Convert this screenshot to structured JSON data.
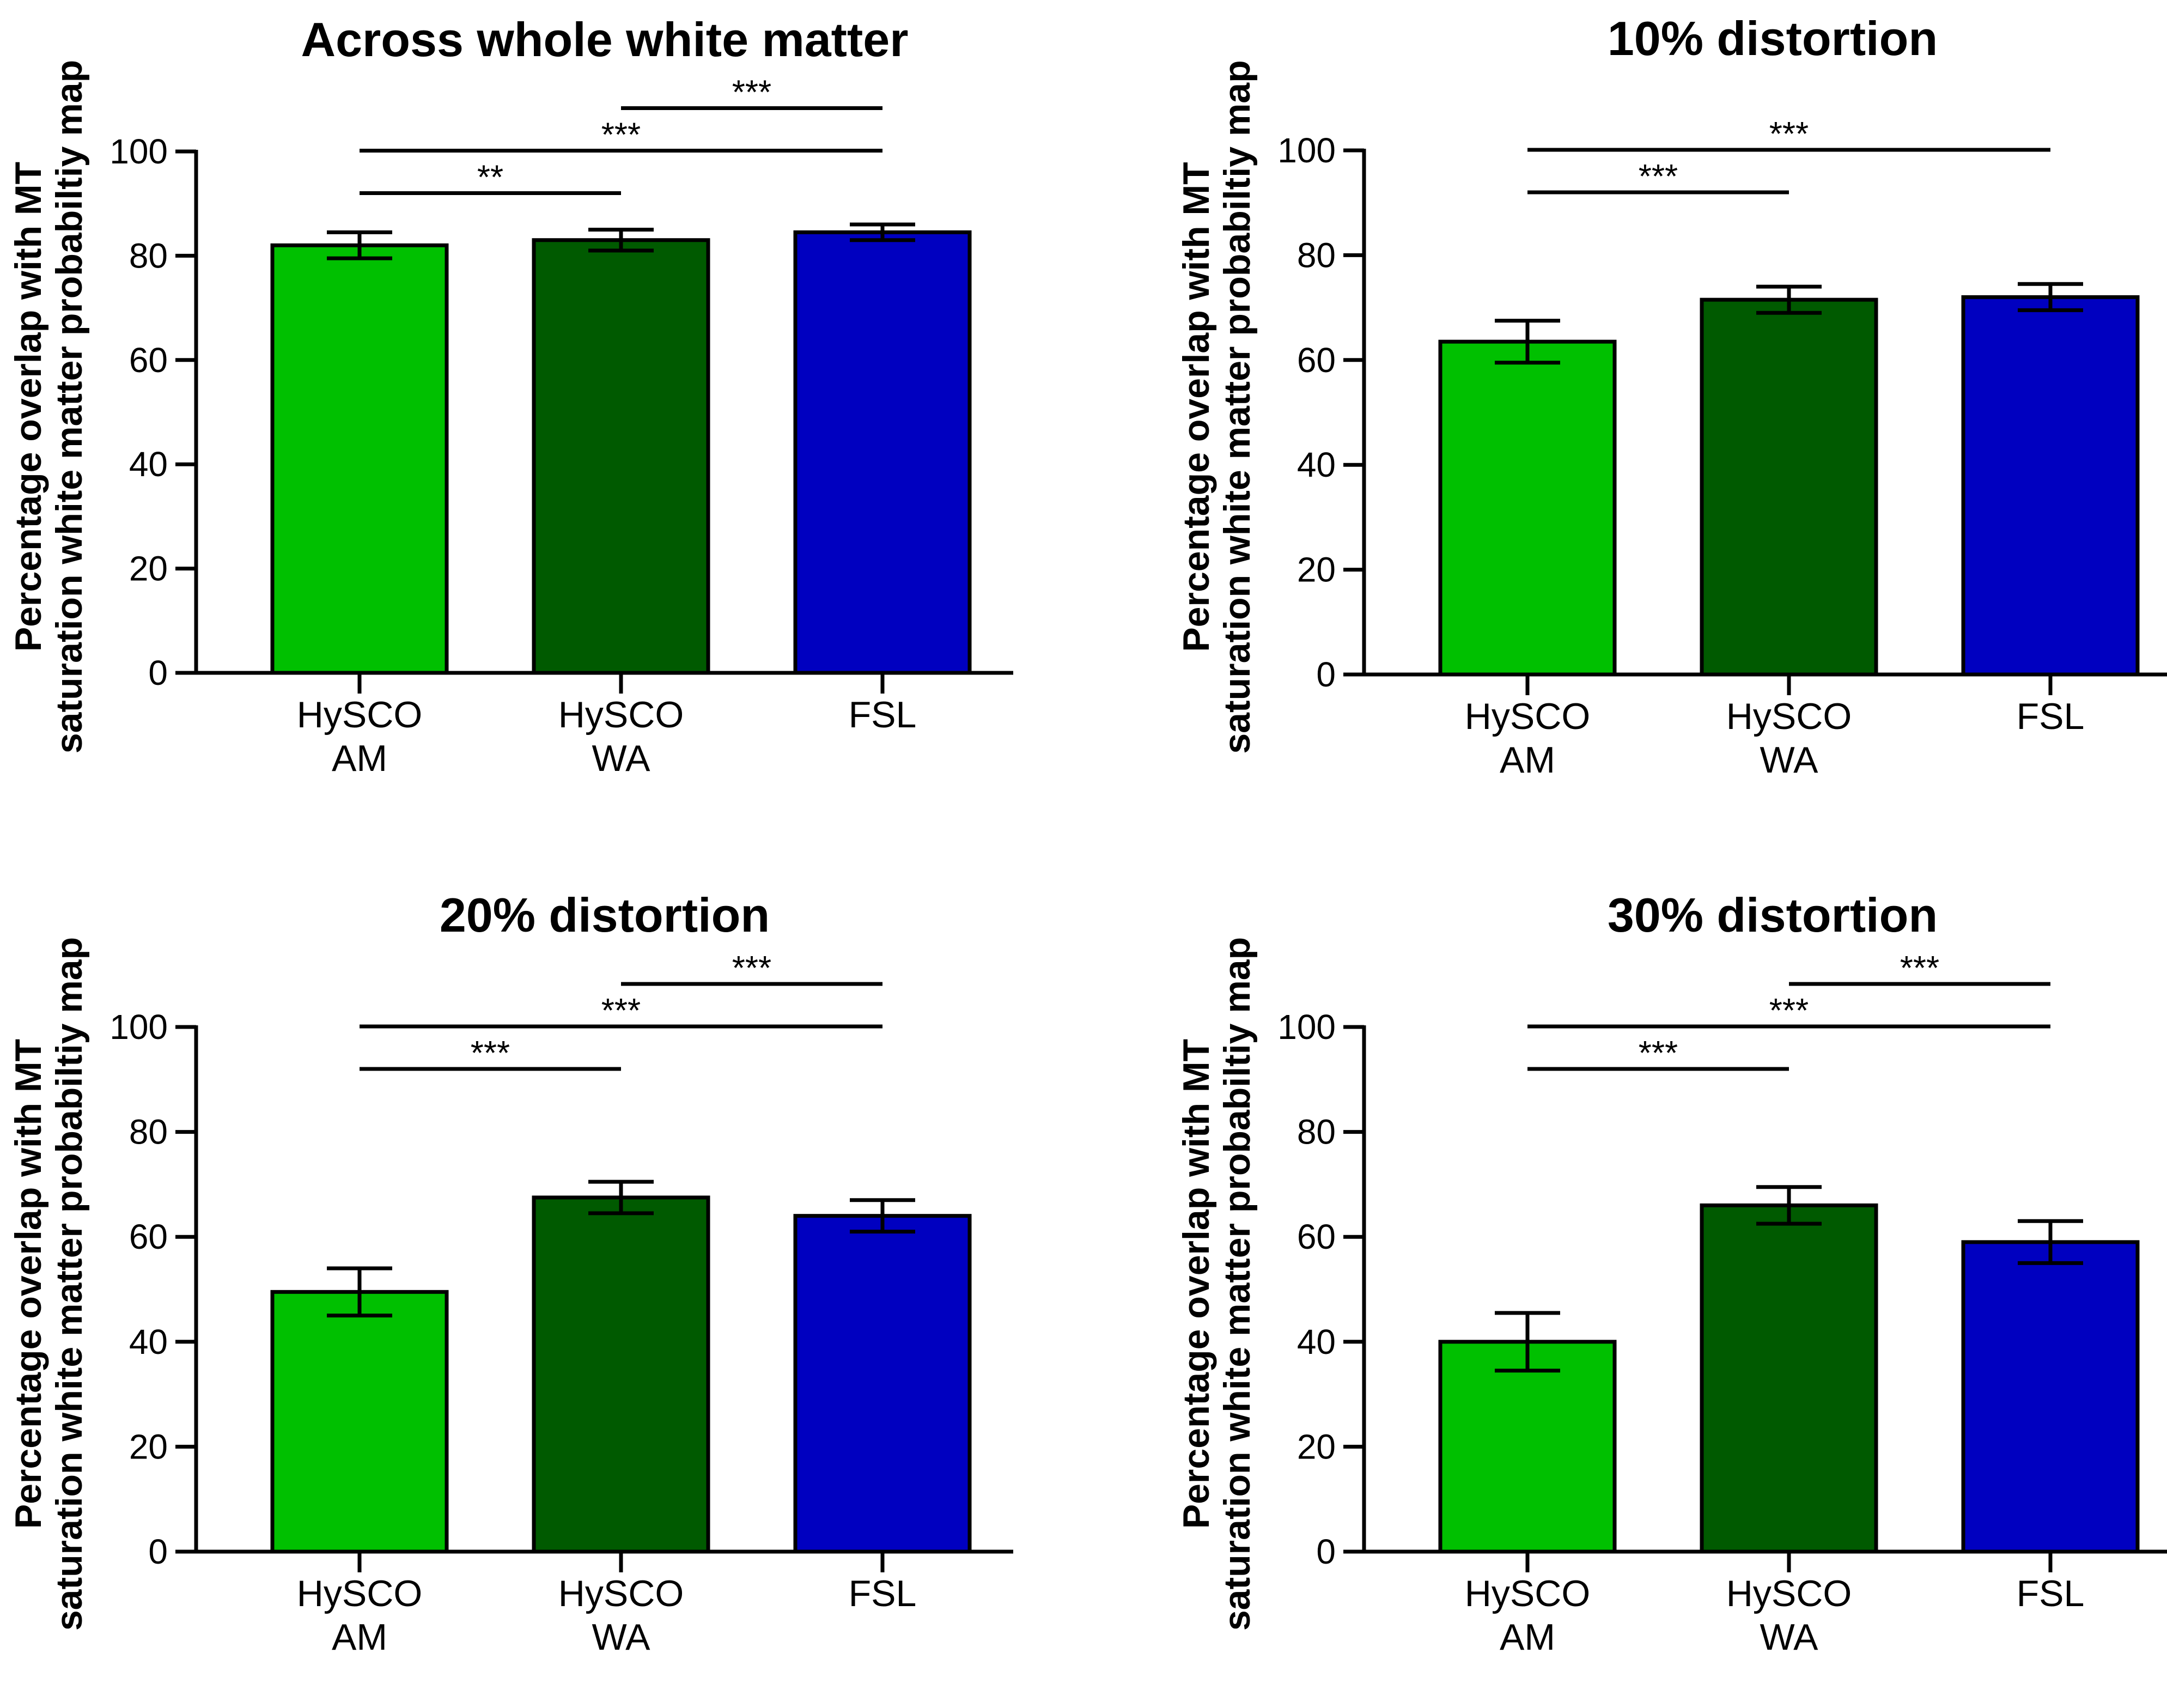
{
  "colors": {
    "hysco_am": "#00c000",
    "hysco_wa": "#005a00",
    "fsl": "#0000c0",
    "stroke": "#000000"
  },
  "chart_data": [
    {
      "type": "bar",
      "title": "Across whole white matter",
      "ylabel": [
        "Percentage overlap with MT",
        "saturation white matter probabiltiy map"
      ],
      "categories": [
        [
          "HySCO",
          "AM"
        ],
        [
          "HySCO",
          "WA"
        ],
        [
          "FSL"
        ]
      ],
      "values": [
        82,
        83,
        84.5
      ],
      "errors": [
        2.5,
        2,
        1.5
      ],
      "ylim": [
        0,
        100
      ],
      "yticks": [
        0,
        20,
        40,
        60,
        80,
        100
      ],
      "significance": [
        {
          "from": 0,
          "to": 1,
          "label": "**"
        },
        {
          "from": 0,
          "to": 2,
          "label": "***"
        },
        {
          "from": 1,
          "to": 2,
          "label": "***"
        }
      ]
    },
    {
      "type": "bar",
      "title": "10% distortion",
      "ylabel": [
        "Percentage overlap with MT",
        "saturation white matter probabiltiy map"
      ],
      "categories": [
        [
          "HySCO",
          "AM"
        ],
        [
          "HySCO",
          "WA"
        ],
        [
          "FSL"
        ]
      ],
      "values": [
        63.5,
        71.5,
        72
      ],
      "errors": [
        4,
        2.5,
        2.5
      ],
      "ylim": [
        0,
        100
      ],
      "yticks": [
        0,
        20,
        40,
        60,
        80,
        100
      ],
      "significance": [
        {
          "from": 0,
          "to": 1,
          "label": "***"
        },
        {
          "from": 0,
          "to": 2,
          "label": "***"
        }
      ]
    },
    {
      "type": "bar",
      "title": "20% distortion",
      "ylabel": [
        "Percentage overlap with MT",
        "saturation white matter probabiltiy map"
      ],
      "categories": [
        [
          "HySCO",
          "AM"
        ],
        [
          "HySCO",
          "WA"
        ],
        [
          "FSL"
        ]
      ],
      "values": [
        49.5,
        67.5,
        64
      ],
      "errors": [
        4.5,
        3,
        3
      ],
      "ylim": [
        0,
        100
      ],
      "yticks": [
        0,
        20,
        40,
        60,
        80,
        100
      ],
      "significance": [
        {
          "from": 0,
          "to": 1,
          "label": "***"
        },
        {
          "from": 0,
          "to": 2,
          "label": "***"
        },
        {
          "from": 1,
          "to": 2,
          "label": "***"
        }
      ]
    },
    {
      "type": "bar",
      "title": "30% distortion",
      "ylabel": [
        "Percentage overlap with MT",
        "saturation white matter probabiltiy map"
      ],
      "categories": [
        [
          "HySCO",
          "AM"
        ],
        [
          "HySCO",
          "WA"
        ],
        [
          "FSL"
        ]
      ],
      "values": [
        40,
        66,
        59
      ],
      "errors": [
        5.5,
        3.5,
        4
      ],
      "ylim": [
        0,
        100
      ],
      "yticks": [
        0,
        20,
        40,
        60,
        80,
        100
      ],
      "significance": [
        {
          "from": 0,
          "to": 1,
          "label": "***"
        },
        {
          "from": 0,
          "to": 2,
          "label": "***"
        },
        {
          "from": 1,
          "to": 2,
          "label": "***"
        }
      ]
    }
  ]
}
